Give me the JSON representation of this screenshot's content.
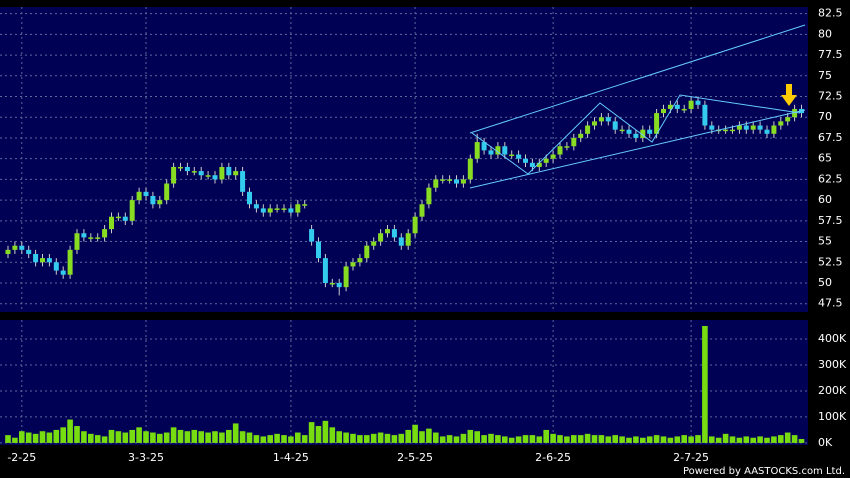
{
  "chart_data": {
    "type": "candlestick",
    "up_color": "#88dd22",
    "down_color": "#33ccee",
    "grid": true,
    "xticks": [
      {
        "value": 2,
        "label": "-2-25"
      },
      {
        "value": 20,
        "label": "3-3-25"
      },
      {
        "value": 41,
        "label": "1-4-25"
      },
      {
        "value": 59,
        "label": "2-5-25"
      },
      {
        "value": 79,
        "label": "2-6-25"
      },
      {
        "value": 99,
        "label": "2-7-25"
      }
    ],
    "ylim": [
      46.5,
      83.3
    ],
    "yticks": [
      47.5,
      50,
      52.5,
      55,
      57.5,
      60,
      62.5,
      65,
      67.5,
      70,
      72.5,
      75,
      77.5,
      80,
      82.5
    ],
    "open": [
      53.5,
      54,
      54.5,
      54,
      53.5,
      52.5,
      53,
      52.5,
      51.5,
      51,
      54,
      56,
      55.5,
      55.5,
      55.5,
      56.5,
      58,
      58,
      57.5,
      60,
      61,
      60.5,
      59.5,
      60,
      62,
      64,
      64,
      63.5,
      63.5,
      63,
      63,
      62.5,
      64,
      63,
      63.5,
      61,
      59.5,
      59,
      58.5,
      59,
      59,
      59,
      58.5,
      59.5,
      56.5,
      55,
      53,
      50,
      50,
      49.5,
      52,
      52.5,
      53,
      54.5,
      55,
      56,
      56.5,
      55.5,
      54.5,
      56,
      58,
      59.5,
      61.5,
      62.5,
      62.5,
      62.5,
      62,
      62.5,
      65,
      67,
      66,
      65.5,
      66.5,
      65.5,
      65.5,
      65,
      64.5,
      64,
      64.5,
      65,
      65.5,
      66.5,
      66.5,
      67.5,
      68,
      69,
      69.5,
      70,
      69.5,
      68.5,
      68.5,
      68,
      67.5,
      68.5,
      68,
      70.5,
      71,
      71.5,
      71,
      71,
      72,
      71.5,
      69,
      68.5,
      68.5,
      68.5,
      68.5,
      69,
      68.5,
      69,
      68.5,
      68,
      69,
      69.5,
      70,
      71
    ],
    "high": [
      54.5,
      55,
      55,
      54.5,
      54,
      53.5,
      53.5,
      53,
      52,
      54.5,
      56.5,
      56.5,
      56,
      56,
      57,
      58.5,
      58.5,
      58.5,
      60.5,
      61.5,
      61.5,
      61,
      60.5,
      62.5,
      64.5,
      64.5,
      64.5,
      64,
      64,
      63.5,
      63.5,
      64.5,
      64.5,
      64,
      64,
      61.5,
      60,
      59.5,
      59.5,
      59.5,
      59.5,
      59.5,
      60,
      60,
      57,
      55.5,
      53.5,
      50.5,
      50.5,
      52.5,
      53,
      53.5,
      55,
      55.5,
      56.5,
      57,
      57,
      56,
      56.5,
      58.5,
      60,
      62,
      63,
      63,
      63,
      63,
      63,
      65.5,
      68,
      67.5,
      66.5,
      67,
      67,
      66,
      66,
      65.5,
      65,
      65,
      65.5,
      66,
      67,
      67,
      68,
      68.5,
      69.5,
      70,
      70.5,
      70.5,
      70,
      69,
      69,
      68.5,
      69,
      69,
      71,
      71.5,
      72,
      72,
      71.5,
      72.5,
      72.5,
      72,
      69.5,
      69,
      69,
      69,
      69.5,
      69.5,
      69.5,
      69.5,
      69,
      69.5,
      70,
      70.5,
      71.5,
      71.5
    ],
    "low": [
      53,
      53.5,
      53.5,
      53,
      52,
      52,
      52,
      51,
      50.5,
      50.5,
      53.5,
      55,
      55,
      55,
      55,
      56,
      57.5,
      57,
      57,
      59.5,
      60,
      59,
      59,
      59.5,
      61.5,
      63.5,
      63,
      63,
      62.5,
      62.5,
      62,
      62,
      62.5,
      62.5,
      60.5,
      59,
      58.5,
      58,
      58,
      58.5,
      58.5,
      58,
      58,
      59,
      54.5,
      52.5,
      49.5,
      49.5,
      48.5,
      49,
      51.5,
      52,
      52.5,
      54,
      54.5,
      55.5,
      55,
      54,
      54,
      55.5,
      57.5,
      59,
      61,
      62,
      62,
      61.5,
      61.5,
      62,
      64.5,
      65.5,
      65,
      65,
      65,
      65,
      64.5,
      64,
      63.5,
      63.5,
      64,
      64.5,
      65,
      66,
      66,
      67,
      67.5,
      68.5,
      69,
      69,
      68,
      68,
      67.5,
      67,
      67,
      67.5,
      67.5,
      70,
      70.5,
      70.5,
      70.5,
      70.5,
      71,
      68.5,
      68,
      68,
      68,
      68,
      68,
      68,
      68,
      68,
      67.5,
      67.5,
      68.5,
      69,
      69.5,
      70
    ],
    "close": [
      54,
      54.5,
      54,
      53.5,
      52.5,
      53,
      52.5,
      51.5,
      51,
      54,
      56,
      55.5,
      55.5,
      55.5,
      56.5,
      58,
      58,
      57.5,
      60,
      61,
      60.5,
      59.5,
      60,
      62,
      64,
      64,
      63.5,
      63.5,
      63,
      63,
      62.5,
      64,
      63,
      63.5,
      61,
      59.5,
      59,
      58.5,
      59,
      59,
      59,
      58.5,
      59.5,
      59.5,
      55,
      53,
      50,
      50,
      49.5,
      52,
      52.5,
      53,
      54.5,
      55,
      56,
      56.5,
      55.5,
      54.5,
      56,
      58,
      59.5,
      61.5,
      62.5,
      62.5,
      62.5,
      62,
      62.5,
      65,
      67,
      66,
      65.5,
      66.5,
      65.5,
      65.5,
      65,
      64.5,
      64,
      64.5,
      65,
      65.5,
      66.5,
      66.5,
      67.5,
      68,
      69,
      69.5,
      70,
      69.5,
      68.5,
      68.5,
      68,
      67.5,
      68.5,
      68,
      70.5,
      71,
      71.5,
      71,
      71,
      72,
      71.5,
      69,
      68.5,
      68.5,
      68.5,
      68.5,
      69,
      68.5,
      69,
      68.5,
      68,
      69,
      69.5,
      70,
      71,
      70.5
    ],
    "volume": {
      "color": "#77dd11",
      "ylim": [
        -8000,
        473000
      ],
      "yticks": [
        {
          "value": 0,
          "label": "0K"
        },
        {
          "value": 100000,
          "label": "100K"
        },
        {
          "value": 200000,
          "label": "200K"
        },
        {
          "value": 300000,
          "label": "300K"
        },
        {
          "value": 400000,
          "label": "400K"
        }
      ],
      "values": [
        30000,
        20000,
        45000,
        40000,
        35000,
        45000,
        40000,
        50000,
        60000,
        90000,
        65000,
        45000,
        35000,
        30000,
        25000,
        50000,
        45000,
        40000,
        50000,
        60000,
        45000,
        40000,
        35000,
        40000,
        60000,
        50000,
        45000,
        50000,
        45000,
        40000,
        45000,
        40000,
        50000,
        75000,
        45000,
        40000,
        30000,
        25000,
        30000,
        35000,
        30000,
        25000,
        40000,
        30000,
        80000,
        65000,
        85000,
        60000,
        45000,
        40000,
        35000,
        30000,
        30000,
        35000,
        40000,
        35000,
        30000,
        35000,
        50000,
        70000,
        45000,
        55000,
        40000,
        25000,
        30000,
        25000,
        35000,
        50000,
        45000,
        30000,
        35000,
        30000,
        25000,
        20000,
        25000,
        30000,
        30000,
        25000,
        50000,
        35000,
        30000,
        25000,
        30000,
        30000,
        35000,
        30000,
        30000,
        25000,
        30000,
        25000,
        20000,
        25000,
        20000,
        25000,
        30000,
        25000,
        20000,
        25000,
        30000,
        25000,
        30000,
        450000,
        25000,
        20000,
        35000,
        25000,
        20000,
        25000,
        20000,
        25000,
        20000,
        25000,
        30000,
        40000,
        30000,
        15000
      ]
    },
    "credit": "Powered by AASTOCKS.com Ltd."
  }
}
